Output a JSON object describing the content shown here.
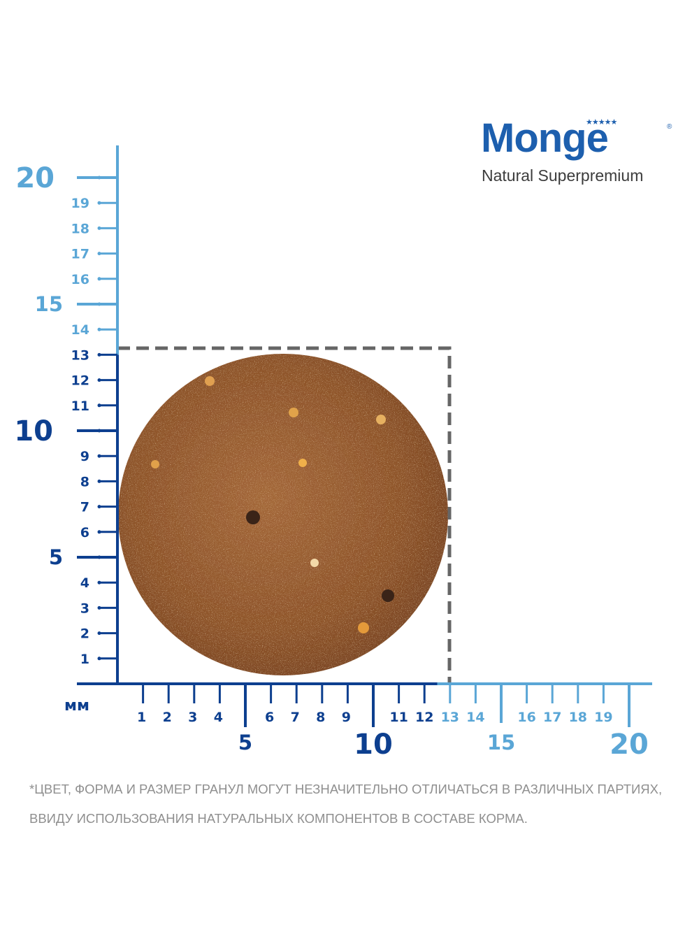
{
  "brand": {
    "name": "Monge",
    "tagline": "Natural Superpremium",
    "registered_mark": "®",
    "stars": "★★★★★"
  },
  "ruler": {
    "unit": "мм",
    "y_major": [
      "20",
      "15",
      "10",
      "5"
    ],
    "y_minor": [
      "19",
      "18",
      "17",
      "16",
      "14",
      "13",
      "12",
      "11",
      "9",
      "8",
      "7",
      "6",
      "4",
      "3",
      "2",
      "1"
    ],
    "x_minor": [
      "1",
      "2",
      "3",
      "4",
      "6",
      "7",
      "8",
      "9",
      "11",
      "12",
      "13",
      "14",
      "16",
      "17",
      "18",
      "19"
    ],
    "x_major": [
      "5",
      "10",
      "15",
      "20"
    ],
    "pellet_size_mm": 13,
    "colors": {
      "dark": "#0d3f8f",
      "light": "#5aa6d6",
      "outline": "#666666"
    }
  },
  "pellet": {
    "shape": "round",
    "color": "#9a5a2a"
  },
  "disclaimer": {
    "line1": "*цвет, форма и размер гранул могут незначительно отличаться в различных партиях,",
    "line2": "ввиду использования натуральных компонентов в составе корма."
  }
}
